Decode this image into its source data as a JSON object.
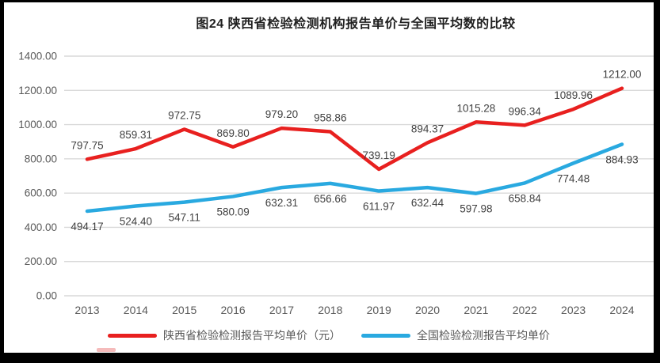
{
  "title": "图24 陕西省检验检测机构报告单价与全国平均数的比较",
  "chart_data": {
    "type": "line",
    "categories": [
      "2013",
      "2014",
      "2015",
      "2016",
      "2017",
      "2018",
      "2019",
      "2020",
      "2021",
      "2022",
      "2023",
      "2024"
    ],
    "series": [
      {
        "name": "陕西省检验检测报告平均单价（元）",
        "color": "#e8201f",
        "label_position": "above",
        "values": [
          797.75,
          859.31,
          972.75,
          869.8,
          979.2,
          958.86,
          739.19,
          894.37,
          1015.28,
          996.34,
          1089.96,
          1212.0
        ]
      },
      {
        "name": "全国检验检测报告平均单价",
        "color": "#29a9e0",
        "label_position": "below",
        "values": [
          494.17,
          524.4,
          547.11,
          580.09,
          632.31,
          656.66,
          611.97,
          632.44,
          597.98,
          658.84,
          774.48,
          884.93
        ]
      }
    ],
    "title": "图24 陕西省检验检测机构报告单价与全国平均数的比较",
    "xlabel": "",
    "ylabel": "",
    "ylim": [
      0,
      1400
    ],
    "ytick_step": 200,
    "ytick_decimals": 2,
    "grid": "horizontal",
    "legend_position": "bottom",
    "colors": {
      "grid_color": "#d9d9d9",
      "axis_tick_color": "#595959",
      "data_label_color": "#404040",
      "title_color": "#1f1f1f",
      "frame_border_color": "#000000",
      "background": "#ffffff"
    }
  }
}
